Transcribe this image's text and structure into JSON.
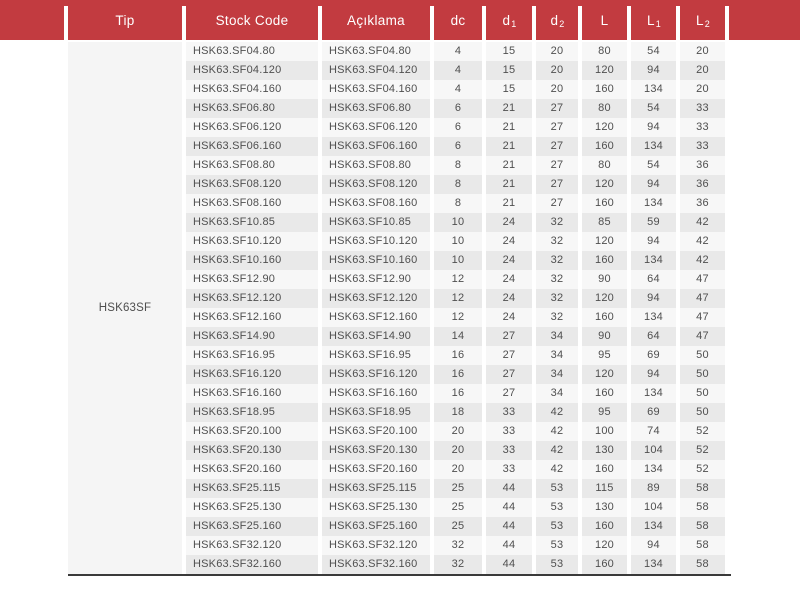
{
  "table": {
    "tip_label": "HSK63SF",
    "columns": [
      {
        "label": "Tip"
      },
      {
        "label": "Stock Code"
      },
      {
        "label": "Açıklama"
      },
      {
        "label": "dc"
      },
      {
        "label": "d",
        "sub": "1"
      },
      {
        "label": "d",
        "sub": "2"
      },
      {
        "label": "L"
      },
      {
        "label": "L",
        "sub": "1"
      },
      {
        "label": "L",
        "sub": "2"
      }
    ],
    "rows": [
      [
        "HSK63.SF04.80",
        "HSK63.SF04.80",
        "4",
        "15",
        "20",
        "80",
        "54",
        "20"
      ],
      [
        "HSK63.SF04.120",
        "HSK63.SF04.120",
        "4",
        "15",
        "20",
        "120",
        "94",
        "20"
      ],
      [
        "HSK63.SF04.160",
        "HSK63.SF04.160",
        "4",
        "15",
        "20",
        "160",
        "134",
        "20"
      ],
      [
        "HSK63.SF06.80",
        "HSK63.SF06.80",
        "6",
        "21",
        "27",
        "80",
        "54",
        "33"
      ],
      [
        "HSK63.SF06.120",
        "HSK63.SF06.120",
        "6",
        "21",
        "27",
        "120",
        "94",
        "33"
      ],
      [
        "HSK63.SF06.160",
        "HSK63.SF06.160",
        "6",
        "21",
        "27",
        "160",
        "134",
        "33"
      ],
      [
        "HSK63.SF08.80",
        "HSK63.SF08.80",
        "8",
        "21",
        "27",
        "80",
        "54",
        "36"
      ],
      [
        "HSK63.SF08.120",
        "HSK63.SF08.120",
        "8",
        "21",
        "27",
        "120",
        "94",
        "36"
      ],
      [
        "HSK63.SF08.160",
        "HSK63.SF08.160",
        "8",
        "21",
        "27",
        "160",
        "134",
        "36"
      ],
      [
        "HSK63.SF10.85",
        "HSK63.SF10.85",
        "10",
        "24",
        "32",
        "85",
        "59",
        "42"
      ],
      [
        "HSK63.SF10.120",
        "HSK63.SF10.120",
        "10",
        "24",
        "32",
        "120",
        "94",
        "42"
      ],
      [
        "HSK63.SF10.160",
        "HSK63.SF10.160",
        "10",
        "24",
        "32",
        "160",
        "134",
        "42"
      ],
      [
        "HSK63.SF12.90",
        "HSK63.SF12.90",
        "12",
        "24",
        "32",
        "90",
        "64",
        "47"
      ],
      [
        "HSK63.SF12.120",
        "HSK63.SF12.120",
        "12",
        "24",
        "32",
        "120",
        "94",
        "47"
      ],
      [
        "HSK63.SF12.160",
        "HSK63.SF12.160",
        "12",
        "24",
        "32",
        "160",
        "134",
        "47"
      ],
      [
        "HSK63.SF14.90",
        "HSK63.SF14.90",
        "14",
        "27",
        "34",
        "90",
        "64",
        "47"
      ],
      [
        "HSK63.SF16.95",
        "HSK63.SF16.95",
        "16",
        "27",
        "34",
        "95",
        "69",
        "50"
      ],
      [
        "HSK63.SF16.120",
        "HSK63.SF16.120",
        "16",
        "27",
        "34",
        "120",
        "94",
        "50"
      ],
      [
        "HSK63.SF16.160",
        "HSK63.SF16.160",
        "16",
        "27",
        "34",
        "160",
        "134",
        "50"
      ],
      [
        "HSK63.SF18.95",
        "HSK63.SF18.95",
        "18",
        "33",
        "42",
        "95",
        "69",
        "50"
      ],
      [
        "HSK63.SF20.100",
        "HSK63.SF20.100",
        "20",
        "33",
        "42",
        "100",
        "74",
        "52"
      ],
      [
        "HSK63.SF20.130",
        "HSK63.SF20.130",
        "20",
        "33",
        "42",
        "130",
        "104",
        "52"
      ],
      [
        "HSK63.SF20.160",
        "HSK63.SF20.160",
        "20",
        "33",
        "42",
        "160",
        "134",
        "52"
      ],
      [
        "HSK63.SF25.115",
        "HSK63.SF25.115",
        "25",
        "44",
        "53",
        "115",
        "89",
        "58"
      ],
      [
        "HSK63.SF25.130",
        "HSK63.SF25.130",
        "25",
        "44",
        "53",
        "130",
        "104",
        "58"
      ],
      [
        "HSK63.SF25.160",
        "HSK63.SF25.160",
        "25",
        "44",
        "53",
        "160",
        "134",
        "58"
      ],
      [
        "HSK63.SF32.120",
        "HSK63.SF32.120",
        "32",
        "44",
        "53",
        "120",
        "94",
        "58"
      ],
      [
        "HSK63.SF32.160",
        "HSK63.SF32.160",
        "32",
        "44",
        "53",
        "160",
        "134",
        "58"
      ]
    ],
    "colors": {
      "header_red": "#c23b40",
      "row_light": "#f7f7f7",
      "row_dark": "#e9e9e9",
      "tip_bg": "#f5f5f5",
      "body_text": "#4f4f4f",
      "bottom_line": "#3a3a3a"
    }
  }
}
